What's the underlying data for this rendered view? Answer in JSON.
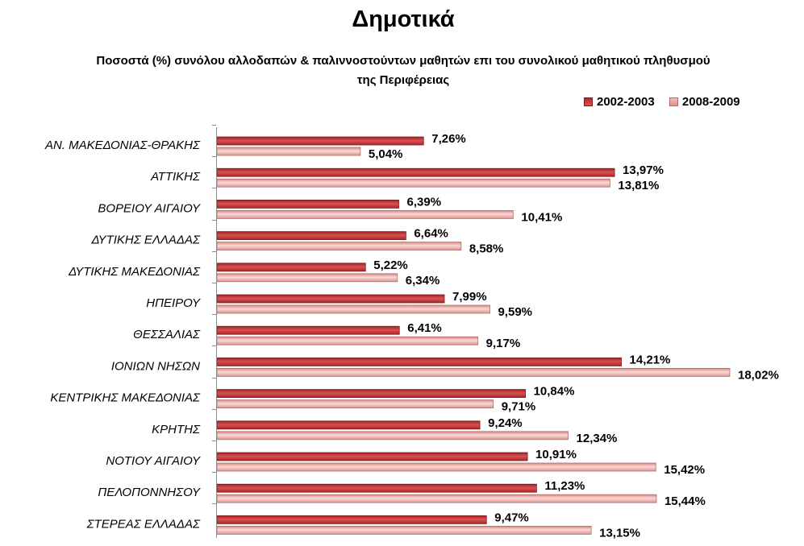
{
  "chart_data": {
    "type": "bar",
    "orientation": "horizontal",
    "title": "Δημοτικά",
    "subtitle": "Ποσοστά (%) συνόλου αλλοδαπών & παλιννοστούντων μαθητών επι του συνολικού μαθητικού πληθυσμού της Περιφέρειας",
    "categories": [
      "ΑΝ. ΜΑΚΕΔΟΝΙΑΣ-ΘΡΑΚΗΣ",
      "ΑΤΤΙΚΗΣ",
      "ΒΟΡΕΙΟΥ ΑΙΓΑΙΟΥ",
      "ΔΥΤΙΚΗΣ ΕΛΛΑΔΑΣ",
      "ΔΥΤΙΚΗΣ ΜΑΚΕΔΟΝΙΑΣ",
      "ΗΠΕΙΡΟΥ",
      "ΘΕΣΣΑΛΙΑΣ",
      "ΙΟΝΙΩΝ ΝΗΣΩΝ",
      "ΚΕΝΤΡΙΚΗΣ ΜΑΚΕΔΟΝΙΑΣ",
      "ΚΡΗΤΗΣ",
      "ΝΟΤΙΟΥ ΑΙΓΑΙΟΥ",
      "ΠΕΛΟΠΟΝΝΗΣΟΥ",
      "ΣΤΕΡΕΑΣ ΕΛΛΑΔΑΣ"
    ],
    "series": [
      {
        "name": "2002-2003",
        "color": "#c0393b",
        "values": [
          7.26,
          13.97,
          6.39,
          6.64,
          5.22,
          7.99,
          6.41,
          14.21,
          10.84,
          9.24,
          10.91,
          11.23,
          9.47
        ],
        "labels": [
          "7,26%",
          "13,97%",
          "6,39%",
          "6,64%",
          "5,22%",
          "7,99%",
          "6,41%",
          "14,21%",
          "10,84%",
          "9,24%",
          "10,91%",
          "11,23%",
          "9,47%"
        ]
      },
      {
        "name": "2008-2009",
        "color": "#e8a6a3",
        "values": [
          5.04,
          13.81,
          10.41,
          8.58,
          6.34,
          9.59,
          9.17,
          18.02,
          9.71,
          12.34,
          15.42,
          15.44,
          13.15
        ],
        "labels": [
          "5,04%",
          "13,81%",
          "10,41%",
          "8,58%",
          "6,34%",
          "9,59%",
          "9,17%",
          "18,02%",
          "9,71%",
          "12,34%",
          "15,42%",
          "15,44%",
          "13,15%"
        ]
      }
    ],
    "xlim": [
      0,
      20
    ],
    "grid": false,
    "legend_position": "top-right"
  }
}
